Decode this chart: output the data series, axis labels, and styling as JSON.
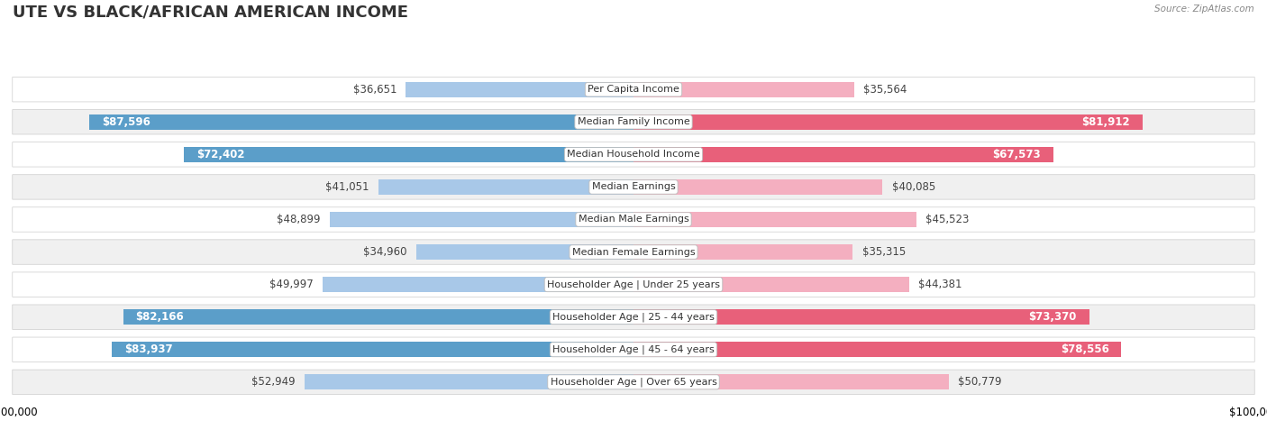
{
  "title": "UTE VS BLACK/AFRICAN AMERICAN INCOME",
  "source": "Source: ZipAtlas.com",
  "categories": [
    "Per Capita Income",
    "Median Family Income",
    "Median Household Income",
    "Median Earnings",
    "Median Male Earnings",
    "Median Female Earnings",
    "Householder Age | Under 25 years",
    "Householder Age | 25 - 44 years",
    "Householder Age | 45 - 64 years",
    "Householder Age | Over 65 years"
  ],
  "ute_values": [
    36651,
    87596,
    72402,
    41051,
    48899,
    34960,
    49997,
    82166,
    83937,
    52949
  ],
  "baa_values": [
    35564,
    81912,
    67573,
    40085,
    45523,
    35315,
    44381,
    73370,
    78556,
    50779
  ],
  "ute_labels": [
    "$36,651",
    "$87,596",
    "$72,402",
    "$41,051",
    "$48,899",
    "$34,960",
    "$49,997",
    "$82,166",
    "$83,937",
    "$52,949"
  ],
  "baa_labels": [
    "$35,564",
    "$81,912",
    "$67,573",
    "$40,085",
    "$45,523",
    "$35,315",
    "$44,381",
    "$73,370",
    "$78,556",
    "$50,779"
  ],
  "ute_color_light": "#a8c8e8",
  "ute_color_dark": "#5b9ec9",
  "baa_color_light": "#f4afc0",
  "baa_color_dark": "#e8607a",
  "max_value": 100000,
  "background_color": "#ffffff",
  "row_bg_odd": "#f0f0f0",
  "row_bg_even": "#ffffff",
  "title_fontsize": 13,
  "label_fontsize": 8.5,
  "category_fontsize": 8,
  "legend_fontsize": 9,
  "large_threshold": 60000
}
